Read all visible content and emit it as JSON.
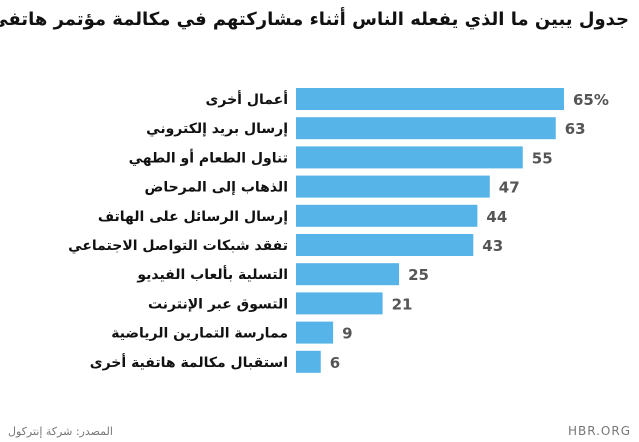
{
  "chart_data": {
    "type": "bar",
    "orientation": "horizontal",
    "title": "جدول يبين ما الذي يفعله الناس أثناء مشاركتهم في مكالمة مؤتمر هاتفي",
    "categories": [
      "أعمال أخرى",
      "إرسال بريد إلكتروني",
      "تناول الطعام أو الطهي",
      "الذهاب إلى المرحاض",
      "إرسال الرسائل على الهاتف",
      "تفقد شبكات التواصل الاجتماعي",
      "التسلية بألعاب الفيديو",
      "التسوق عبر الإنترنت",
      "ممارسة التمارين الرياضية",
      "استقبال مكالمة هاتفية أخرى"
    ],
    "values": [
      65,
      63,
      55,
      47,
      44,
      43,
      25,
      21,
      9,
      6
    ],
    "value_labels": [
      "65%",
      "63",
      "55",
      "47",
      "44",
      "43",
      "25",
      "21",
      "9",
      "6"
    ],
    "xlim": [
      0,
      65
    ],
    "grid": false,
    "bar_color": "#56b4e9"
  },
  "source": "المصدر: شركة إنتركول",
  "brand": "HBR.ORG"
}
